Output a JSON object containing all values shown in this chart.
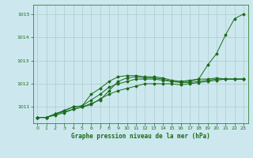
{
  "bg_color": "#cce8ee",
  "grid_color": "#aacccc",
  "line_color": "#1a6b1a",
  "title": "Graphe pression niveau de la mer (hPa)",
  "xlim": [
    -0.5,
    23.5
  ],
  "ylim": [
    1010.3,
    1015.4
  ],
  "yticks": [
    1011,
    1012,
    1013,
    1014,
    1015
  ],
  "xticks": [
    0,
    1,
    2,
    3,
    4,
    5,
    6,
    7,
    8,
    9,
    10,
    11,
    12,
    13,
    14,
    15,
    16,
    17,
    18,
    19,
    20,
    21,
    22,
    23
  ],
  "lines": [
    [
      1010.55,
      1010.55,
      1010.7,
      1010.8,
      1010.9,
      1011.0,
      1011.15,
      1011.3,
      1011.7,
      1012.1,
      1012.25,
      1012.3,
      1012.25,
      1012.25,
      1012.2,
      1012.1,
      1012.1,
      1012.15,
      1012.2,
      1012.8,
      1013.3,
      1014.1,
      1014.8,
      1015.0
    ],
    [
      1010.55,
      1010.55,
      1010.7,
      1010.85,
      1011.0,
      1011.05,
      1011.55,
      1011.8,
      1012.1,
      1012.3,
      1012.35,
      1012.35,
      1012.3,
      1012.3,
      1012.25,
      1012.15,
      1012.1,
      1012.1,
      1012.2,
      1012.2,
      1012.25,
      1012.2,
      1012.2,
      1012.2
    ],
    [
      1010.55,
      1010.55,
      1010.7,
      1010.85,
      1011.0,
      1011.05,
      1011.3,
      1011.55,
      1011.85,
      1012.0,
      1012.1,
      1012.2,
      1012.2,
      1012.2,
      1012.15,
      1012.1,
      1012.05,
      1012.05,
      1012.1,
      1012.15,
      1012.2,
      1012.2,
      1012.2,
      1012.2
    ],
    [
      1010.55,
      1010.55,
      1010.65,
      1010.75,
      1010.9,
      1011.0,
      1011.1,
      1011.35,
      1011.55,
      1011.7,
      1011.8,
      1011.9,
      1012.0,
      1012.0,
      1012.0,
      1012.0,
      1011.95,
      1012.0,
      1012.05,
      1012.1,
      1012.15,
      1012.2,
      1012.2,
      1012.2
    ]
  ]
}
